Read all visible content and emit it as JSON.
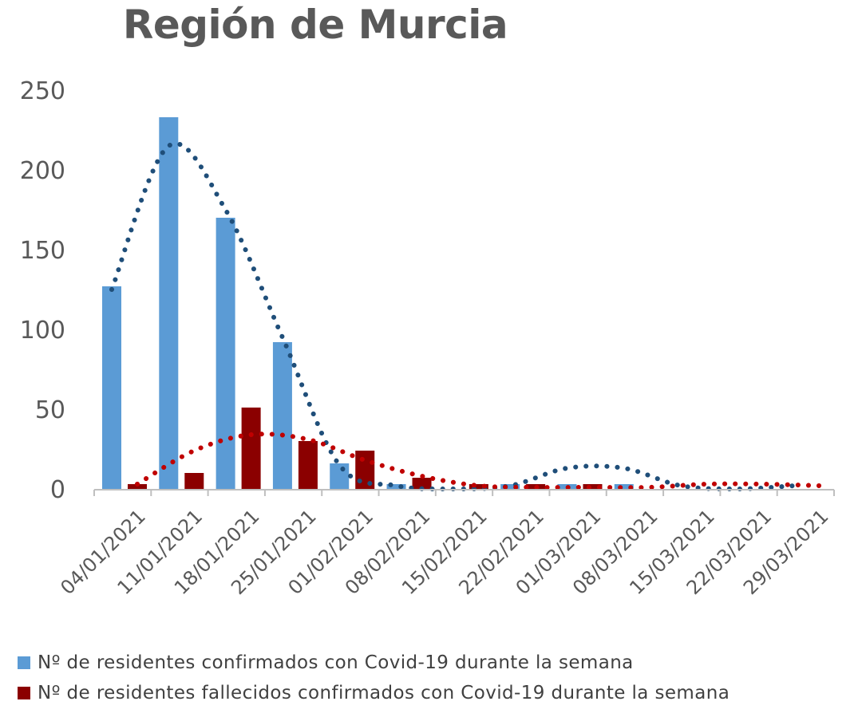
{
  "chart_data": {
    "type": "bar",
    "title": "Región de Murcia",
    "categories": [
      "04/01/2021",
      "11/01/2021",
      "18/01/2021",
      "25/01/2021",
      "01/02/2021",
      "08/02/2021",
      "15/02/2021",
      "22/02/2021",
      "01/03/2021",
      "08/03/2021",
      "15/03/2021",
      "22/03/2021",
      "29/03/2021"
    ],
    "series": [
      {
        "name": "Nº de residentes confirmados con Covid-19 durante la semana",
        "color": "#5B9BD5",
        "values": [
          127,
          233,
          170,
          92,
          16,
          3,
          0,
          3,
          3,
          3,
          0,
          0,
          0
        ],
        "trend": [
          125,
          215,
          175,
          95,
          15,
          2,
          0,
          2,
          13,
          13,
          2,
          0,
          2
        ],
        "trend_color": "#1F4E79"
      },
      {
        "name": "Nº de residentes fallecidos confirmados con Covid-19 durante la semana",
        "color": "#8B0000",
        "values": [
          3,
          10,
          51,
          30,
          24,
          7,
          3,
          3,
          3,
          0,
          0,
          0,
          0
        ],
        "trend": [
          3,
          24,
          34,
          31,
          18,
          8,
          2,
          1,
          1,
          1,
          3,
          3,
          2
        ],
        "trend_color": "#C00000"
      }
    ],
    "y_ticks": [
      "0",
      "50",
      "100",
      "150",
      "200",
      "250"
    ],
    "ylim": [
      0,
      250
    ],
    "xlabel": "",
    "ylabel": "",
    "grid": false,
    "legend_position": "bottom"
  }
}
